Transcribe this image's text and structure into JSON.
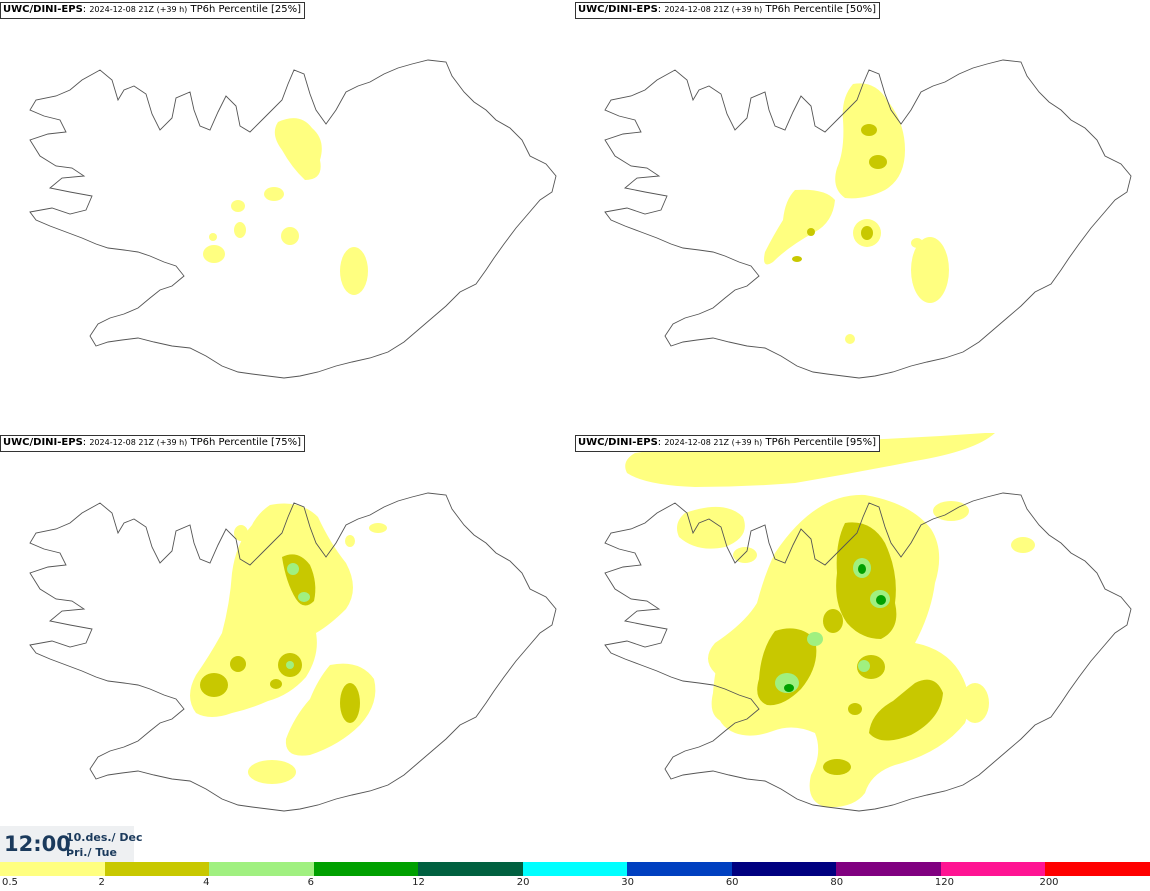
{
  "panels": [
    {
      "source": "UWC/DINI-EPS",
      "run": "2024-12-08 21Z (+39 h)",
      "field": "TP6h Percentile [25%]"
    },
    {
      "source": "UWC/DINI-EPS",
      "run": "2024-12-08 21Z (+39 h)",
      "field": "TP6h Percentile [50%]"
    },
    {
      "source": "UWC/DINI-EPS",
      "run": "2024-12-08 21Z (+39 h)",
      "field": "TP6h Percentile [75%]"
    },
    {
      "source": "UWC/DINI-EPS",
      "run": "2024-12-08 21Z (+39 h)",
      "field": "TP6h Percentile [95%]"
    }
  ],
  "valid_time": {
    "time": "12:00",
    "date": "10.des./ Dec",
    "weekday": "Þri./ Tue"
  },
  "legend": {
    "thresholds": [
      "0.5",
      "2",
      "4",
      "6",
      "12",
      "20",
      "30",
      "60",
      "80",
      "120",
      "200"
    ],
    "colors": [
      "#ffff80",
      "#c8c800",
      "#a0f080",
      "#00a000",
      "#006040",
      "#00ffff",
      "#0040c0",
      "#000080",
      "#800080",
      "#ff1493",
      "#ff0000"
    ]
  },
  "map_colors": {
    "coast": "#555555",
    "background": "#ffffff"
  }
}
